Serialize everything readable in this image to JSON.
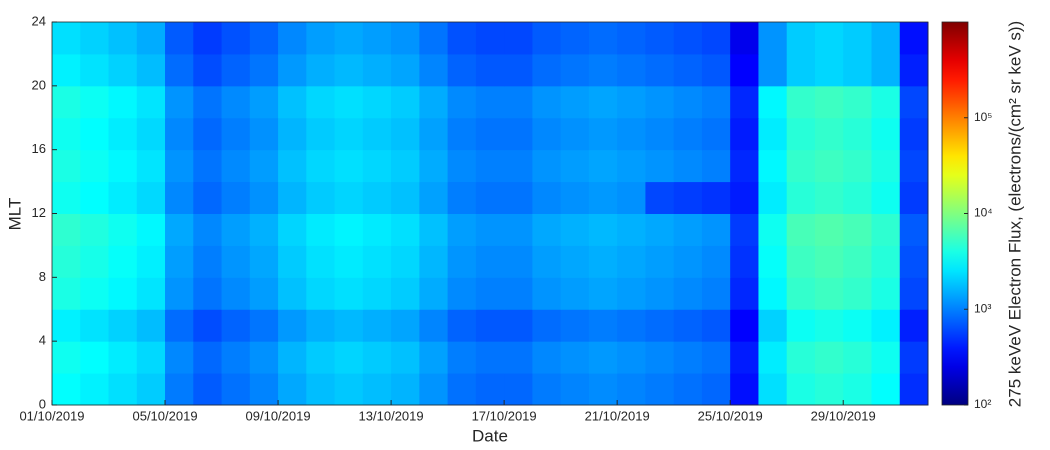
{
  "chart_data": {
    "type": "heatmap",
    "xlabel": "Date",
    "ylabel": "MLT",
    "x": [
      "01/10/2019",
      "02/10/2019",
      "03/10/2019",
      "04/10/2019",
      "05/10/2019",
      "06/10/2019",
      "07/10/2019",
      "08/10/2019",
      "09/10/2019",
      "10/10/2019",
      "11/10/2019",
      "12/10/2019",
      "13/10/2019",
      "14/10/2019",
      "15/10/2019",
      "16/10/2019",
      "17/10/2019",
      "18/10/2019",
      "19/10/2019",
      "20/10/2019",
      "21/10/2019",
      "22/10/2019",
      "23/10/2019",
      "24/10/2019",
      "25/10/2019",
      "26/10/2019",
      "27/10/2019",
      "28/10/2019",
      "29/10/2019",
      "30/10/2019",
      "31/10/2019"
    ],
    "xticks": [
      "01/10/2019",
      "05/10/2019",
      "09/10/2019",
      "13/10/2019",
      "17/10/2019",
      "21/10/2019",
      "25/10/2019",
      "29/10/2019"
    ],
    "y_bins": [
      0,
      2,
      4,
      6,
      8,
      10,
      12,
      14,
      16,
      18,
      20,
      22,
      24
    ],
    "ylim": [
      0,
      24
    ],
    "yticks": [
      0,
      4,
      8,
      12,
      16,
      20,
      24
    ],
    "z": [
      [
        3200,
        2800,
        2400,
        2000,
        960,
        720,
        880,
        1040,
        1440,
        1760,
        1920,
        1760,
        1600,
        1200,
        880,
        800,
        800,
        960,
        1040,
        1120,
        1040,
        960,
        880,
        800,
        360,
        2400,
        4000,
        4400,
        4000,
        3200,
        480
      ],
      [
        3600,
        3150,
        2700,
        2250,
        1080,
        810,
        990,
        1170,
        1620,
        1980,
        2160,
        1980,
        1800,
        1350,
        990,
        900,
        900,
        1080,
        1170,
        1260,
        1170,
        1080,
        990,
        900,
        405,
        2700,
        4500,
        4950,
        4500,
        3600,
        540
      ],
      [
        2800,
        2450,
        2100,
        1750,
        840,
        630,
        770,
        910,
        1260,
        1540,
        1680,
        1540,
        1400,
        1050,
        770,
        700,
        700,
        840,
        910,
        980,
        910,
        840,
        770,
        700,
        315,
        2100,
        3500,
        3850,
        3500,
        2800,
        420
      ],
      [
        4000,
        3500,
        3000,
        2500,
        1200,
        900,
        1100,
        1300,
        1800,
        2200,
        2400,
        2200,
        2000,
        1500,
        1100,
        1000,
        1000,
        1200,
        1300,
        1400,
        1300,
        1200,
        1100,
        1000,
        450,
        3000,
        5000,
        5500,
        5000,
        4000,
        600
      ],
      [
        4400,
        3850,
        3300,
        2750,
        1320,
        990,
        1210,
        1430,
        1980,
        2420,
        2640,
        2420,
        2200,
        1650,
        1210,
        1100,
        1100,
        1320,
        1430,
        1540,
        1430,
        1320,
        1210,
        1100,
        495,
        3300,
        5500,
        6050,
        5500,
        4400,
        660
      ],
      [
        4800,
        4200,
        3600,
        3000,
        1440,
        1080,
        1320,
        1560,
        2160,
        2640,
        2880,
        2640,
        2400,
        1800,
        1320,
        1200,
        1200,
        1440,
        1560,
        1680,
        1560,
        1440,
        1320,
        1200,
        540,
        3600,
        6000,
        6600,
        6000,
        4800,
        720
      ],
      [
        3600,
        3150,
        2700,
        2250,
        1080,
        810,
        990,
        1170,
        1620,
        1980,
        2160,
        1980,
        1800,
        1350,
        990,
        900,
        900,
        1080,
        1170,
        1260,
        1170,
        600,
        550,
        500,
        405,
        2700,
        4500,
        4950,
        4500,
        3600,
        540
      ],
      [
        4000,
        3500,
        3000,
        2500,
        1200,
        900,
        1100,
        1300,
        1800,
        2200,
        2400,
        2200,
        2000,
        1500,
        1100,
        1000,
        1000,
        1200,
        1300,
        1400,
        1300,
        1200,
        1100,
        1000,
        450,
        3000,
        5000,
        5500,
        5000,
        4000,
        600
      ],
      [
        3600,
        3150,
        2700,
        2250,
        1080,
        810,
        990,
        1170,
        1620,
        1980,
        2160,
        1980,
        1800,
        1350,
        990,
        900,
        900,
        1080,
        1170,
        1260,
        1170,
        1080,
        990,
        900,
        405,
        2700,
        4500,
        4950,
        4500,
        3600,
        540
      ],
      [
        4000,
        3500,
        3000,
        2500,
        1200,
        900,
        1100,
        1300,
        1800,
        2200,
        2400,
        2200,
        2000,
        1500,
        1100,
        1000,
        1000,
        1200,
        1300,
        1400,
        1300,
        1200,
        1100,
        1000,
        450,
        3000,
        5000,
        5500,
        5000,
        4000,
        600
      ],
      [
        2800,
        2450,
        2100,
        1750,
        840,
        630,
        770,
        910,
        1260,
        1540,
        1680,
        1540,
        1400,
        1050,
        770,
        700,
        700,
        840,
        910,
        980,
        910,
        840,
        770,
        700,
        315,
        1200,
        2000,
        2200,
        2000,
        1600,
        420
      ],
      [
        2400,
        2100,
        1800,
        1500,
        720,
        540,
        660,
        780,
        1080,
        1320,
        1440,
        1320,
        1200,
        900,
        660,
        600,
        600,
        720,
        780,
        840,
        780,
        720,
        660,
        600,
        270,
        1200,
        2000,
        2200,
        2000,
        1600,
        360
      ]
    ],
    "colorbar": {
      "label": "275 keVeV Electron Flux, (electrons/(cm² sr keV s))",
      "lim": [
        100,
        1000000
      ],
      "log": true,
      "colormap": "jet",
      "ticks": [
        {
          "value": 100,
          "label": "10²"
        },
        {
          "value": 1000,
          "label": "10³"
        },
        {
          "value": 10000,
          "label": "10⁴"
        },
        {
          "value": 100000,
          "label": "10⁵"
        }
      ]
    }
  }
}
